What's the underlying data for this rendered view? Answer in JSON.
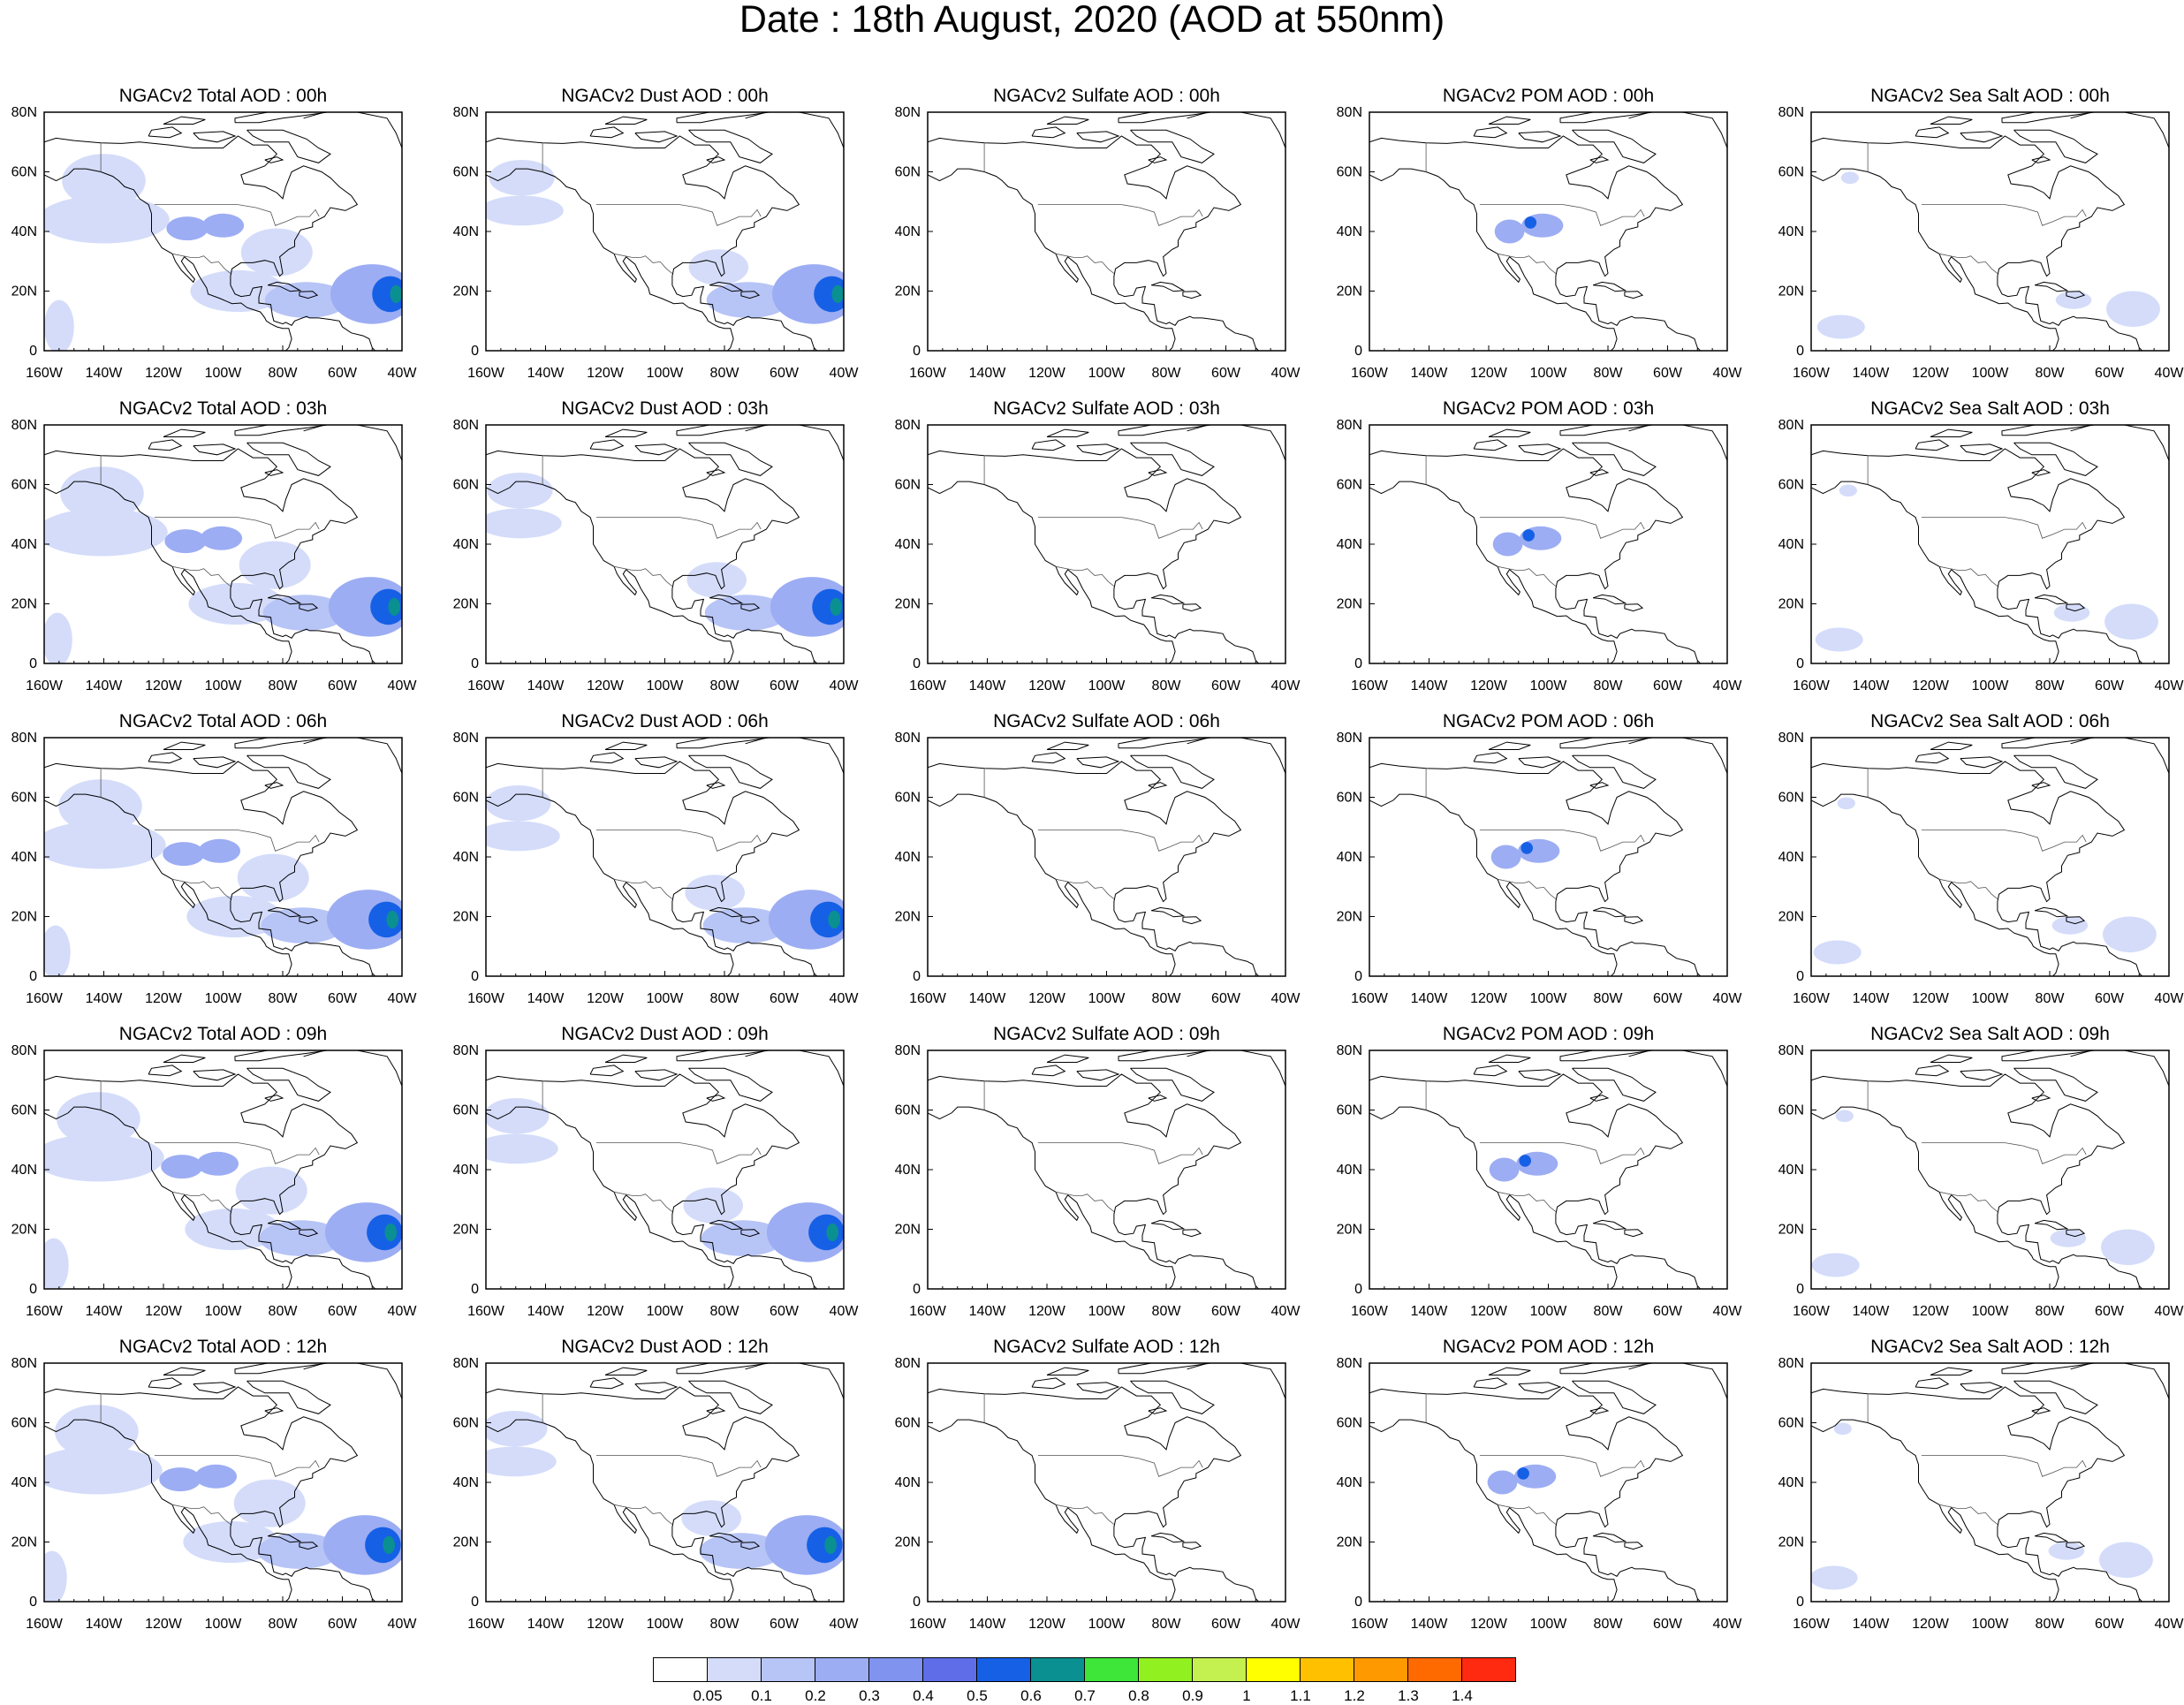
{
  "title": "Date : 18th August, 2020 (AOD at 550nm)",
  "map": {
    "x_axis_ticks": [
      "160W",
      "140W",
      "120W",
      "100W",
      "80W",
      "60W",
      "40W"
    ],
    "y_axis_ticks": [
      "80N",
      "60N",
      "40N",
      "20N",
      "0"
    ],
    "lon_range": [
      -160,
      -40
    ],
    "lat_range": [
      0,
      80
    ],
    "species_order": [
      "Total",
      "Dust",
      "Sulfate",
      "POM",
      "Sea Salt"
    ],
    "times": [
      "00h",
      "03h",
      "06h",
      "09h",
      "12h"
    ]
  },
  "panels": [
    [
      {
        "title": "NGACv2 Total AOD : 00h",
        "species": "Total",
        "time": "00h"
      },
      {
        "title": "NGACv2 Dust AOD : 00h",
        "species": "Dust",
        "time": "00h"
      },
      {
        "title": "NGACv2 Sulfate AOD : 00h",
        "species": "Sulfate",
        "time": "00h"
      },
      {
        "title": "NGACv2 POM AOD : 00h",
        "species": "POM",
        "time": "00h"
      },
      {
        "title": "NGACv2 Sea Salt AOD : 00h",
        "species": "Sea Salt",
        "time": "00h"
      }
    ],
    [
      {
        "title": "NGACv2 Total AOD : 03h",
        "species": "Total",
        "time": "03h"
      },
      {
        "title": "NGACv2 Dust AOD : 03h",
        "species": "Dust",
        "time": "03h"
      },
      {
        "title": "NGACv2 Sulfate AOD : 03h",
        "species": "Sulfate",
        "time": "03h"
      },
      {
        "title": "NGACv2 POM AOD : 03h",
        "species": "POM",
        "time": "03h"
      },
      {
        "title": "NGACv2 Sea Salt AOD : 03h",
        "species": "Sea Salt",
        "time": "03h"
      }
    ],
    [
      {
        "title": "NGACv2 Total AOD : 06h",
        "species": "Total",
        "time": "06h"
      },
      {
        "title": "NGACv2 Dust AOD : 06h",
        "species": "Dust",
        "time": "06h"
      },
      {
        "title": "NGACv2 Sulfate AOD : 06h",
        "species": "Sulfate",
        "time": "06h"
      },
      {
        "title": "NGACv2 POM AOD : 06h",
        "species": "POM",
        "time": "06h"
      },
      {
        "title": "NGACv2 Sea Salt AOD : 06h",
        "species": "Sea Salt",
        "time": "06h"
      }
    ],
    [
      {
        "title": "NGACv2 Total AOD : 09h",
        "species": "Total",
        "time": "09h"
      },
      {
        "title": "NGACv2 Dust AOD : 09h",
        "species": "Dust",
        "time": "09h"
      },
      {
        "title": "NGACv2 Sulfate AOD : 09h",
        "species": "Sulfate",
        "time": "09h"
      },
      {
        "title": "NGACv2 POM AOD : 09h",
        "species": "POM",
        "time": "09h"
      },
      {
        "title": "NGACv2 Sea Salt  AOD : 09h",
        "species": "Sea Salt",
        "time": "09h"
      }
    ],
    [
      {
        "title": "NGACv2 Total AOD  : 12h",
        "species": "Total",
        "time": "12h"
      },
      {
        "title": "NGACv2 Dust AOD : 12h",
        "species": "Dust",
        "time": "12h"
      },
      {
        "title": "NGACv2 Sulfate AOD : 12h",
        "species": "Sulfate",
        "time": "12h"
      },
      {
        "title": "NGACv2 POM  AOD : 12h",
        "species": "POM",
        "time": "12h"
      },
      {
        "title": "NGACv2 Sea Salt  AOD : 12h",
        "species": "Sea Salt",
        "time": "12h"
      }
    ]
  ],
  "colorbar": {
    "labels": [
      "0.05",
      "0.1",
      "0.2",
      "0.3",
      "0.4",
      "0.5",
      "0.6",
      "0.7",
      "0.8",
      "0.9",
      "1",
      "1.1",
      "1.2",
      "1.3",
      "1.4"
    ],
    "colors": [
      "#ffffff",
      "#d4dcfa",
      "#b7c4f6",
      "#9cadf3",
      "#7f93ef",
      "#5f6ee8",
      "#1660e6",
      "#0a9090",
      "#3ee63a",
      "#90f020",
      "#c4f050",
      "#ffff00",
      "#ffc000",
      "#ff9900",
      "#ff6a00",
      "#ff2a10"
    ]
  },
  "aod_levels": {
    "background": "#ffffff",
    "light": "#d4dcfa",
    "low": "#b7c4f6",
    "mid": "#9cadf3",
    "high": "#7f93ef",
    "peak": "#1660e6",
    "extreme": "#0a9090"
  },
  "aod_features": {
    "Total": [
      {
        "name": "northeast-pacific-haze",
        "lon": -140,
        "lat": 57,
        "rx": 14,
        "ry": 9,
        "level": "light"
      },
      {
        "name": "pacific-coast-band",
        "lon": -140,
        "lat": 44,
        "rx": 22,
        "ry": 8,
        "level": "light"
      },
      {
        "name": "western-us-smoke",
        "lon": -112,
        "lat": 41,
        "rx": 7,
        "ry": 4,
        "level": "mid"
      },
      {
        "name": "central-us-smoke",
        "lon": -100,
        "lat": 42,
        "rx": 7,
        "ry": 4,
        "level": "mid"
      },
      {
        "name": "east-us-haze",
        "lon": -82,
        "lat": 33,
        "rx": 12,
        "ry": 8,
        "level": "light"
      },
      {
        "name": "mexico-gulf-plume",
        "lon": -95,
        "lat": 20,
        "rx": 16,
        "ry": 7,
        "level": "light"
      },
      {
        "name": "caribbean-dust",
        "lon": -72,
        "lat": 17,
        "rx": 14,
        "ry": 6,
        "level": "low"
      },
      {
        "name": "atlantic-dust-outer",
        "lon": -50,
        "lat": 19,
        "rx": 14,
        "ry": 10,
        "level": "mid"
      },
      {
        "name": "atlantic-dust-core",
        "lon": -44,
        "lat": 19,
        "rx": 6,
        "ry": 6,
        "level": "peak"
      },
      {
        "name": "atlantic-dust-center",
        "lon": -42,
        "lat": 19,
        "rx": 2,
        "ry": 3,
        "level": "extreme"
      },
      {
        "name": "tropical-pacific-haze",
        "lon": -155,
        "lat": 8,
        "rx": 5,
        "ry": 9,
        "level": "light"
      }
    ],
    "Dust": [
      {
        "name": "northeast-pacific-dust",
        "lon": -148,
        "lat": 58,
        "rx": 11,
        "ry": 6,
        "level": "light"
      },
      {
        "name": "pacific-band",
        "lon": -148,
        "lat": 47,
        "rx": 14,
        "ry": 5,
        "level": "light"
      },
      {
        "name": "us-southeast-dust",
        "lon": -82,
        "lat": 28,
        "rx": 10,
        "ry": 6,
        "level": "light"
      },
      {
        "name": "caribbean-dust",
        "lon": -72,
        "lat": 17,
        "rx": 14,
        "ry": 6,
        "level": "low"
      },
      {
        "name": "atlantic-dust-outer",
        "lon": -50,
        "lat": 19,
        "rx": 14,
        "ry": 10,
        "level": "mid"
      },
      {
        "name": "atlantic-dust-core",
        "lon": -44,
        "lat": 19,
        "rx": 6,
        "ry": 6,
        "level": "peak"
      },
      {
        "name": "atlantic-dust-center",
        "lon": -42,
        "lat": 19,
        "rx": 2,
        "ry": 3,
        "level": "extreme"
      }
    ],
    "Sulfate": [],
    "POM": [
      {
        "name": "western-us-smoke",
        "lon": -113,
        "lat": 40,
        "rx": 5,
        "ry": 4,
        "level": "mid"
      },
      {
        "name": "central-us-smoke",
        "lon": -102,
        "lat": 42,
        "rx": 7,
        "ry": 4,
        "level": "mid"
      },
      {
        "name": "smoke-core",
        "lon": -106,
        "lat": 43,
        "rx": 2,
        "ry": 2,
        "level": "peak"
      }
    ],
    "Sea Salt": [
      {
        "name": "gulf-of-alaska-salt",
        "lon": -147,
        "lat": 58,
        "rx": 3,
        "ry": 2,
        "level": "light"
      },
      {
        "name": "tropical-pacific-salt",
        "lon": -150,
        "lat": 8,
        "rx": 8,
        "ry": 4,
        "level": "light"
      },
      {
        "name": "caribbean-salt",
        "lon": -72,
        "lat": 17,
        "rx": 6,
        "ry": 3,
        "level": "light"
      },
      {
        "name": "atlantic-salt",
        "lon": -52,
        "lat": 14,
        "rx": 9,
        "ry": 6,
        "level": "light"
      }
    ]
  }
}
